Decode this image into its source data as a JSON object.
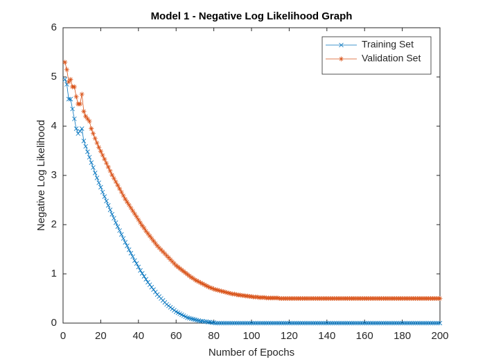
{
  "chart_data": {
    "type": "line",
    "title": "Model 1 - Negative Log Likelihood Graph",
    "x_label": "Number of Epochs",
    "y_label": "Negative Log Likelihood",
    "xlim": [
      0,
      200
    ],
    "xticks": [
      0,
      20,
      40,
      60,
      80,
      100,
      120,
      140,
      160,
      180,
      200
    ],
    "ylim": [
      0,
      6
    ],
    "yticks": [
      0,
      1,
      2,
      3,
      4,
      5,
      6
    ],
    "legend": "northeast",
    "x": [
      1,
      2,
      3,
      4,
      5,
      6,
      7,
      8,
      9,
      10,
      11,
      12,
      13,
      14,
      15,
      16,
      17,
      18,
      19,
      20,
      21,
      22,
      23,
      24,
      25,
      26,
      27,
      28,
      29,
      30,
      31,
      32,
      33,
      34,
      35,
      36,
      37,
      38,
      39,
      40,
      41,
      42,
      43,
      44,
      45,
      46,
      47,
      48,
      49,
      50,
      51,
      52,
      53,
      54,
      55,
      56,
      57,
      58,
      59,
      60,
      61,
      62,
      63,
      64,
      65,
      66,
      67,
      68,
      69,
      70,
      71,
      72,
      73,
      74,
      75,
      76,
      77,
      78,
      79,
      80,
      81,
      82,
      83,
      84,
      85,
      86,
      87,
      88,
      89,
      90,
      91,
      92,
      93,
      94,
      95,
      96,
      97,
      98,
      99,
      100,
      101,
      102,
      103,
      104,
      105,
      106,
      107,
      108,
      109,
      110,
      111,
      112,
      113,
      114,
      115,
      116,
      117,
      118,
      119,
      120,
      121,
      122,
      123,
      124,
      125,
      126,
      127,
      128,
      129,
      130,
      131,
      132,
      133,
      134,
      135,
      136,
      137,
      138,
      139,
      140,
      141,
      142,
      143,
      144,
      145,
      146,
      147,
      148,
      149,
      150,
      151,
      152,
      153,
      154,
      155,
      156,
      157,
      158,
      159,
      160,
      161,
      162,
      163,
      164,
      165,
      166,
      167,
      168,
      169,
      170,
      171,
      172,
      173,
      174,
      175,
      176,
      177,
      178,
      179,
      180,
      181,
      182,
      183,
      184,
      185,
      186,
      187,
      188,
      189,
      190,
      191,
      192,
      193,
      194,
      195,
      196,
      197,
      198,
      199,
      200
    ],
    "series": [
      {
        "name": "Training Set",
        "color": "#0072bd",
        "marker": "x",
        "values": [
          4.95,
          4.85,
          4.55,
          4.55,
          4.35,
          4.15,
          3.95,
          3.85,
          3.9,
          3.95,
          3.7,
          3.59,
          3.48,
          3.37,
          3.26,
          3.16,
          3.05,
          2.95,
          2.85,
          2.76,
          2.66,
          2.57,
          2.48,
          2.39,
          2.3,
          2.21,
          2.13,
          2.04,
          1.96,
          1.88,
          1.8,
          1.72,
          1.64,
          1.57,
          1.49,
          1.42,
          1.35,
          1.27,
          1.21,
          1.14,
          1.07,
          1.01,
          0.95,
          0.89,
          0.83,
          0.78,
          0.73,
          0.68,
          0.63,
          0.58,
          0.54,
          0.5,
          0.46,
          0.42,
          0.38,
          0.35,
          0.32,
          0.29,
          0.26,
          0.23,
          0.21,
          0.19,
          0.17,
          0.15,
          0.13,
          0.11,
          0.1,
          0.09,
          0.08,
          0.07,
          0.06,
          0.05,
          0.04,
          0.04,
          0.03,
          0.03,
          0.02,
          0.02,
          0.01,
          0.01,
          0,
          0,
          0,
          0,
          0,
          0,
          0,
          0,
          0,
          0,
          0,
          0,
          0,
          0,
          0,
          0,
          0,
          0,
          0,
          0,
          0,
          0,
          0,
          0,
          0,
          0,
          0,
          0,
          0,
          0,
          0,
          0,
          0,
          0,
          0,
          0,
          0,
          0,
          0,
          0,
          0,
          0,
          0,
          0,
          0,
          0,
          0,
          0,
          0,
          0,
          0,
          0,
          0,
          0,
          0,
          0,
          0,
          0,
          0,
          0,
          0,
          0,
          0,
          0,
          0,
          0,
          0,
          0,
          0,
          0,
          0,
          0,
          0,
          0,
          0,
          0,
          0,
          0,
          0,
          0,
          0,
          0,
          0,
          0,
          0,
          0,
          0,
          0,
          0,
          0,
          0,
          0,
          0,
          0,
          0,
          0,
          0,
          0,
          0,
          0,
          0,
          0,
          0,
          0,
          0,
          0,
          0,
          0,
          0,
          0,
          0,
          0,
          0,
          0,
          0,
          0,
          0,
          0,
          0,
          0
        ]
      },
      {
        "name": "Validation Set",
        "color": "#d95319",
        "marker": "*",
        "values": [
          5.3,
          5.15,
          4.9,
          4.95,
          4.8,
          4.8,
          4.6,
          4.45,
          4.45,
          4.65,
          4.3,
          4.2,
          4.15,
          4.1,
          3.95,
          3.85,
          3.75,
          3.66,
          3.57,
          3.49,
          3.41,
          3.33,
          3.25,
          3.17,
          3.09,
          3.01,
          2.94,
          2.87,
          2.8,
          2.73,
          2.66,
          2.59,
          2.52,
          2.46,
          2.4,
          2.34,
          2.28,
          2.22,
          2.16,
          2.1,
          2.04,
          1.98,
          1.93,
          1.87,
          1.82,
          1.77,
          1.72,
          1.67,
          1.62,
          1.57,
          1.53,
          1.49,
          1.45,
          1.41,
          1.37,
          1.33,
          1.29,
          1.25,
          1.21,
          1.17,
          1.14,
          1.11,
          1.08,
          1.05,
          1.02,
          0.99,
          0.96,
          0.93,
          0.91,
          0.88,
          0.86,
          0.84,
          0.82,
          0.8,
          0.78,
          0.76,
          0.74,
          0.72,
          0.71,
          0.69,
          0.68,
          0.67,
          0.66,
          0.65,
          0.64,
          0.63,
          0.62,
          0.61,
          0.6,
          0.59,
          0.59,
          0.58,
          0.57,
          0.57,
          0.56,
          0.56,
          0.55,
          0.55,
          0.54,
          0.54,
          0.53,
          0.53,
          0.53,
          0.52,
          0.52,
          0.52,
          0.52,
          0.51,
          0.51,
          0.51,
          0.51,
          0.51,
          0.51,
          0.51,
          0.5,
          0.5,
          0.5,
          0.5,
          0.5,
          0.5,
          0.5,
          0.5,
          0.5,
          0.5,
          0.5,
          0.5,
          0.5,
          0.5,
          0.5,
          0.5,
          0.5,
          0.5,
          0.5,
          0.5,
          0.5,
          0.5,
          0.5,
          0.5,
          0.5,
          0.5,
          0.5,
          0.5,
          0.5,
          0.5,
          0.5,
          0.5,
          0.5,
          0.5,
          0.5,
          0.5,
          0.5,
          0.5,
          0.5,
          0.5,
          0.5,
          0.5,
          0.5,
          0.5,
          0.5,
          0.5,
          0.5,
          0.5,
          0.5,
          0.5,
          0.5,
          0.5,
          0.5,
          0.5,
          0.5,
          0.5,
          0.5,
          0.5,
          0.5,
          0.5,
          0.5,
          0.5,
          0.5,
          0.5,
          0.5,
          0.5,
          0.5,
          0.5,
          0.5,
          0.5,
          0.5,
          0.5,
          0.5,
          0.5,
          0.5,
          0.5,
          0.5,
          0.5,
          0.5,
          0.5,
          0.5,
          0.5,
          0.5,
          0.5,
          0.5,
          0.5
        ]
      }
    ]
  }
}
